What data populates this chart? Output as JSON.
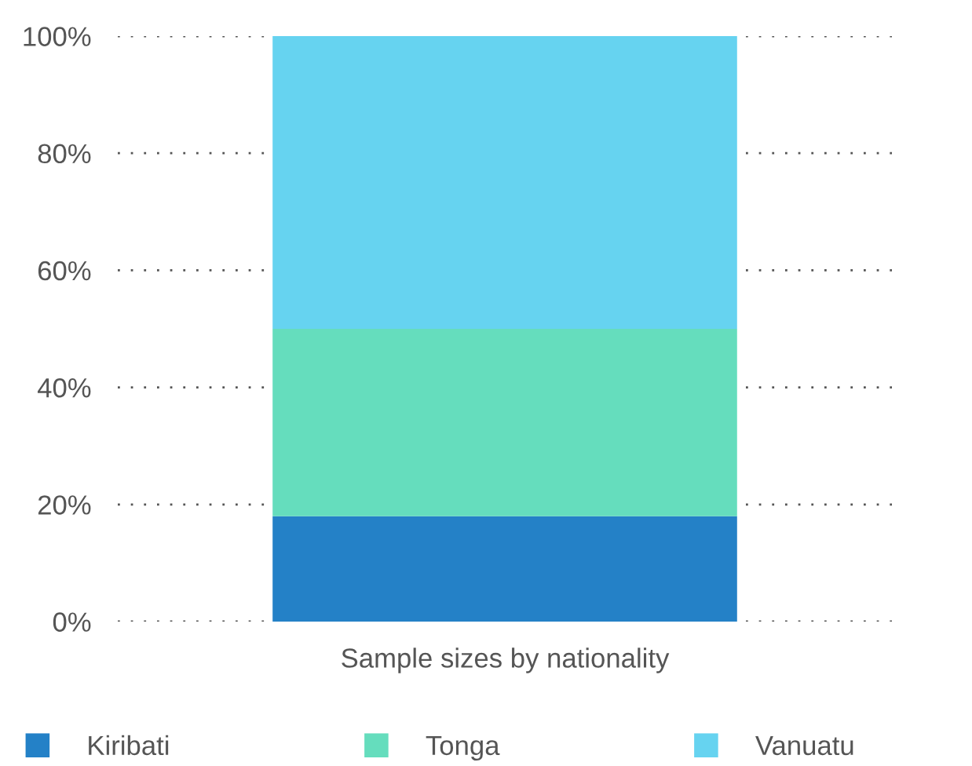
{
  "chart_data": {
    "type": "bar",
    "stacked": true,
    "categories": [
      "Sample sizes by nationality"
    ],
    "series": [
      {
        "name": "Kiribati",
        "color": "#2481c7",
        "values": [
          18
        ]
      },
      {
        "name": "Tonga",
        "color": "#65ddbd",
        "values": [
          32
        ]
      },
      {
        "name": "Vanuatu",
        "color": "#66d3f0",
        "values": [
          50
        ]
      }
    ],
    "ylim": [
      0,
      100
    ],
    "yticks": [
      {
        "value": 0,
        "label": "0%"
      },
      {
        "value": 20,
        "label": "20%"
      },
      {
        "value": 40,
        "label": "40%"
      },
      {
        "value": 60,
        "label": "60%"
      },
      {
        "value": 80,
        "label": "80%"
      },
      {
        "value": 100,
        "label": "100%"
      }
    ],
    "grid": "y",
    "legend": "bottom"
  }
}
